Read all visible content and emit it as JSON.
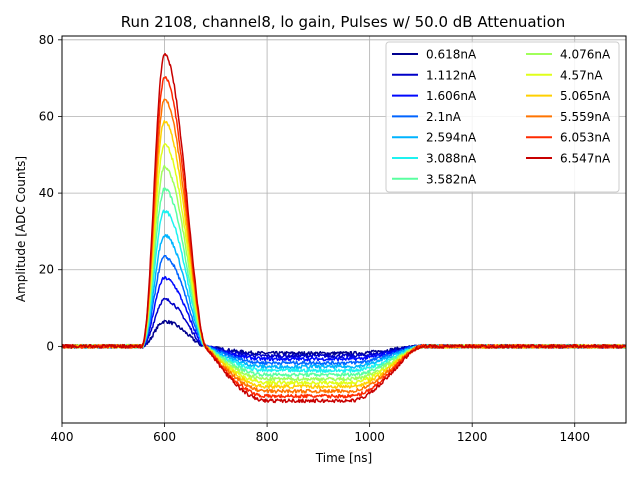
{
  "chart_data": {
    "type": "line",
    "title": "Run 2108, channel8, lo gain, Pulses w/ 50.0 dB Attenuation",
    "xlabel": "Time [ns]",
    "ylabel": "Amplitude [ADC Counts]",
    "xlim": [
      400,
      1500
    ],
    "ylim": [
      -20,
      81
    ],
    "xticks": [
      400,
      600,
      800,
      1000,
      1200,
      1400
    ],
    "yticks": [
      0,
      20,
      40,
      60,
      80
    ],
    "grid": true,
    "legend": {
      "location": "upper-right",
      "columns": 2
    },
    "pulse_model": {
      "baseline": 0,
      "rise_start_ns": 555,
      "peak_ns": 600,
      "zero_cross_ns": 680,
      "undershoot_plateau_ns": [
        800,
        960
      ],
      "recovery_end_ns": 1100
    },
    "series": [
      {
        "name": "0.618nA",
        "color": "#00008f",
        "peak": 6.5,
        "undershoot": -1.8
      },
      {
        "name": "1.112nA",
        "color": "#0000c8",
        "peak": 12.2,
        "undershoot": -2.5
      },
      {
        "name": "1.606nA",
        "color": "#0008ff",
        "peak": 17.8,
        "undershoot": -3.3
      },
      {
        "name": "2.1nA",
        "color": "#0064ff",
        "peak": 23.3,
        "undershoot": -4.3
      },
      {
        "name": "2.594nA",
        "color": "#00b4ff",
        "peak": 29.0,
        "undershoot": -5.3
      },
      {
        "name": "3.088nA",
        "color": "#1ef2f0",
        "peak": 35.3,
        "undershoot": -6.3
      },
      {
        "name": "3.582nA",
        "color": "#5affa0",
        "peak": 41.0,
        "undershoot": -7.4
      },
      {
        "name": "4.076nA",
        "color": "#a0ff5a",
        "peak": 46.8,
        "undershoot": -8.5
      },
      {
        "name": "4.57nA",
        "color": "#e0ff1a",
        "peak": 52.6,
        "undershoot": -9.5
      },
      {
        "name": "5.065nA",
        "color": "#ffd000",
        "peak": 58.8,
        "undershoot": -10.5
      },
      {
        "name": "5.559nA",
        "color": "#ff7400",
        "peak": 64.3,
        "undershoot": -11.7
      },
      {
        "name": "6.053nA",
        "color": "#ff2a00",
        "peak": 70.2,
        "undershoot": -13.0
      },
      {
        "name": "6.547nA",
        "color": "#c80000",
        "peak": 76.2,
        "undershoot": -14.2
      }
    ]
  }
}
